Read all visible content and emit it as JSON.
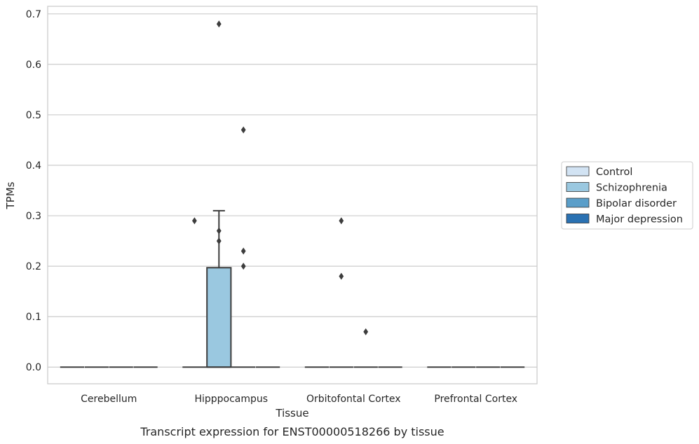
{
  "chart_data": {
    "type": "box",
    "caption": "Transcript expression for ENST00000518266 by tissue",
    "xlabel": "Tissue",
    "ylabel": "TPMs",
    "ylim": [
      -0.033,
      0.715
    ],
    "yticks": [
      0.0,
      0.1,
      0.2,
      0.3,
      0.4,
      0.5,
      0.6,
      0.7
    ],
    "ytick_labels": [
      "0.0",
      "0.1",
      "0.2",
      "0.3",
      "0.4",
      "0.5",
      "0.6",
      "0.7"
    ],
    "grid": "horizontal",
    "legend_position": "right",
    "categories": [
      "Cerebellum",
      "Hipppocampus",
      "Orbitofontal Cortex",
      "Prefrontal Cortex"
    ],
    "series": [
      {
        "name": "Control",
        "color": "#d2e3f3",
        "boxes": [
          {
            "category": "Cerebellum",
            "q1": 0,
            "median": 0,
            "q3": 0,
            "whisker_low": 0,
            "whisker_high": 0,
            "outliers": []
          },
          {
            "category": "Hipppocampus",
            "q1": 0,
            "median": 0,
            "q3": 0,
            "whisker_low": 0,
            "whisker_high": 0,
            "outliers": [
              0.29
            ]
          },
          {
            "category": "Orbitofontal Cortex",
            "q1": 0,
            "median": 0,
            "q3": 0,
            "whisker_low": 0,
            "whisker_high": 0,
            "outliers": []
          },
          {
            "category": "Prefrontal Cortex",
            "q1": 0,
            "median": 0,
            "q3": 0,
            "whisker_low": 0,
            "whisker_high": 0,
            "outliers": []
          }
        ]
      },
      {
        "name": "Schizophrenia",
        "color": "#9ac8e0",
        "boxes": [
          {
            "category": "Cerebellum",
            "q1": 0,
            "median": 0,
            "q3": 0,
            "whisker_low": 0,
            "whisker_high": 0,
            "outliers": []
          },
          {
            "category": "Hipppocampus",
            "q1": 0,
            "median": 0,
            "q3": 0.197,
            "whisker_low": 0,
            "whisker_high": 0.31,
            "outliers": [
              0.68,
              0.27,
              0.25
            ]
          },
          {
            "category": "Orbitofontal Cortex",
            "q1": 0,
            "median": 0,
            "q3": 0,
            "whisker_low": 0,
            "whisker_high": 0,
            "outliers": [
              0.29,
              0.18
            ]
          },
          {
            "category": "Prefrontal Cortex",
            "q1": 0,
            "median": 0,
            "q3": 0,
            "whisker_low": 0,
            "whisker_high": 0,
            "outliers": []
          }
        ]
      },
      {
        "name": "Bipolar disorder",
        "color": "#5a9ec9",
        "boxes": [
          {
            "category": "Cerebellum",
            "q1": 0,
            "median": 0,
            "q3": 0,
            "whisker_low": 0,
            "whisker_high": 0,
            "outliers": []
          },
          {
            "category": "Hipppocampus",
            "q1": 0,
            "median": 0,
            "q3": 0,
            "whisker_low": 0,
            "whisker_high": 0,
            "outliers": [
              0.47,
              0.23,
              0.2
            ]
          },
          {
            "category": "Orbitofontal Cortex",
            "q1": 0,
            "median": 0,
            "q3": 0,
            "whisker_low": 0,
            "whisker_high": 0,
            "outliers": [
              0.07
            ]
          },
          {
            "category": "Prefrontal Cortex",
            "q1": 0,
            "median": 0,
            "q3": 0,
            "whisker_low": 0,
            "whisker_high": 0,
            "outliers": []
          }
        ]
      },
      {
        "name": "Major depression",
        "color": "#2a71b2",
        "boxes": [
          {
            "category": "Cerebellum",
            "q1": 0,
            "median": 0,
            "q3": 0,
            "whisker_low": 0,
            "whisker_high": 0,
            "outliers": []
          },
          {
            "category": "Hipppocampus",
            "q1": 0,
            "median": 0,
            "q3": 0,
            "whisker_low": 0,
            "whisker_high": 0,
            "outliers": []
          },
          {
            "category": "Orbitofontal Cortex",
            "q1": 0,
            "median": 0,
            "q3": 0,
            "whisker_low": 0,
            "whisker_high": 0,
            "outliers": []
          },
          {
            "category": "Prefrontal Cortex",
            "q1": 0,
            "median": 0,
            "q3": 0,
            "whisker_low": 0,
            "whisker_high": 0,
            "outliers": []
          }
        ]
      }
    ],
    "colors": {
      "grid": "#cccccc",
      "frame": "#cccccc",
      "box_edge": "#3d3d3d",
      "outlier": "#3d3d3d"
    }
  }
}
